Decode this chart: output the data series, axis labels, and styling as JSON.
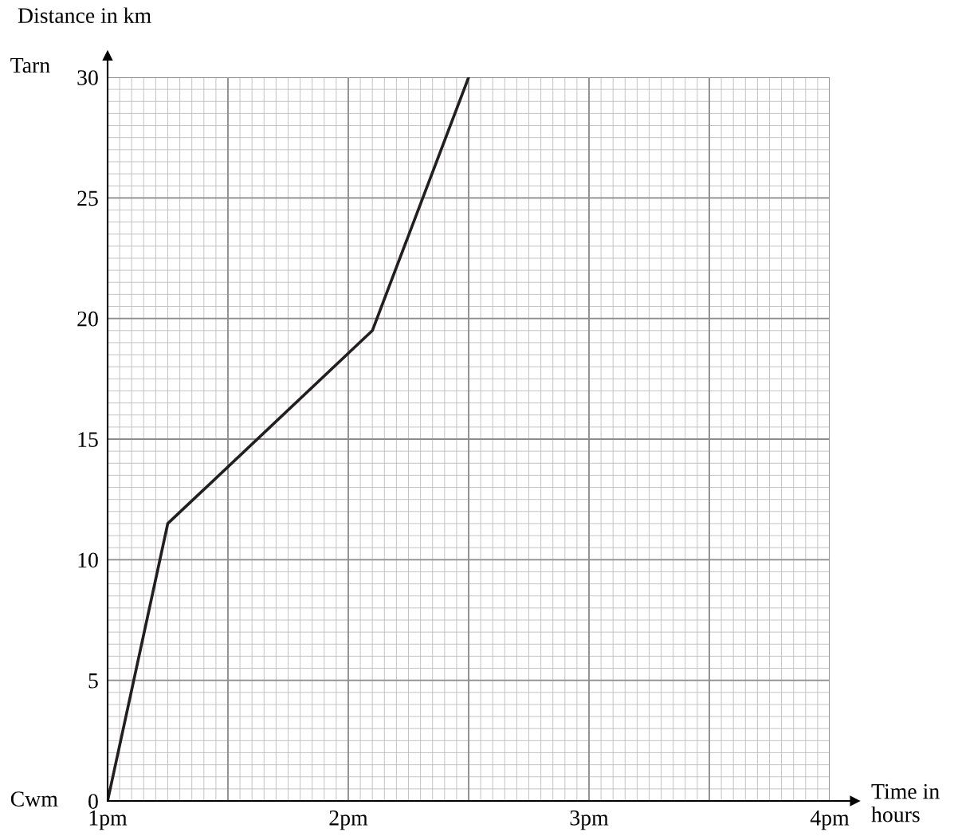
{
  "chart_data": {
    "type": "line",
    "xlabel": "Time in hours",
    "ylabel": "Distance in km",
    "x": [
      1,
      1.25,
      2.1,
      2.5
    ],
    "series": [
      {
        "color": "#231f20",
        "values": [
          0,
          11.5,
          19.5,
          30
        ]
      }
    ],
    "xlim": [
      1,
      4
    ],
    "ylim": [
      0,
      30
    ],
    "xticks": [
      {
        "value": 1,
        "label": "1pm"
      },
      {
        "value": 1.5,
        "label": null
      },
      {
        "value": 2,
        "label": "2pm"
      },
      {
        "value": 2.5,
        "label": null
      },
      {
        "value": 3,
        "label": "3pm"
      },
      {
        "value": 3.5,
        "label": null
      },
      {
        "value": 4,
        "label": "4pm"
      }
    ],
    "yticks": [
      0,
      5,
      10,
      15,
      20,
      25,
      30
    ],
    "annotations": [
      "Tarn",
      "Cwm"
    ],
    "grid": true,
    "marker": "none",
    "line_style": "solid"
  }
}
